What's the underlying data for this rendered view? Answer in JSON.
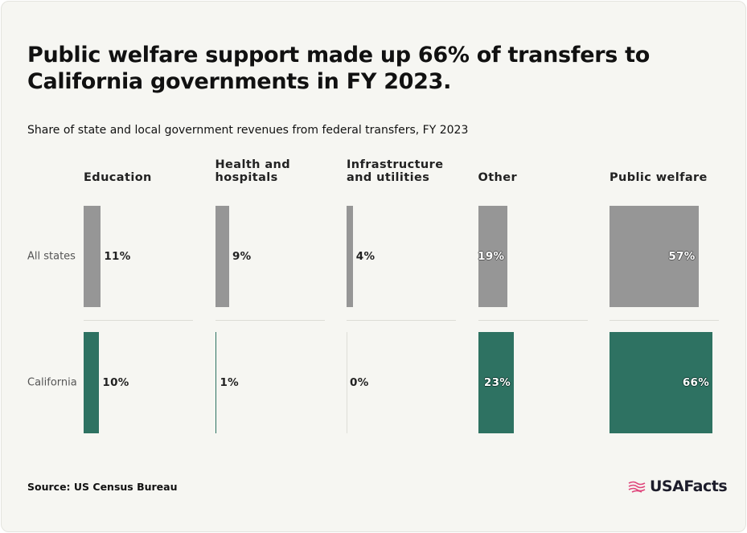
{
  "chart_data": {
    "type": "bar",
    "title": "Public welfare support made up 66% of transfers to California governments in FY 2023.",
    "subtitle": "Share of state and local government revenues from federal transfers, FY 2023",
    "categories": [
      "Education",
      "Health and hospitals",
      "Infrastructure and utilities",
      "Other",
      "Public welfare"
    ],
    "series": [
      {
        "name": "All states",
        "color": "#969696",
        "values": [
          11,
          9,
          4,
          19,
          57
        ],
        "value_labels": [
          "11%",
          "9%",
          "4%",
          "19%",
          "57%"
        ]
      },
      {
        "name": "California",
        "color": "#2e7262",
        "values": [
          10,
          1,
          0,
          23,
          66
        ],
        "value_labels": [
          "10%",
          "1%",
          "0%",
          "23%",
          "66%"
        ]
      }
    ],
    "source": "Source: US Census Bureau",
    "logo": "USAFacts"
  }
}
